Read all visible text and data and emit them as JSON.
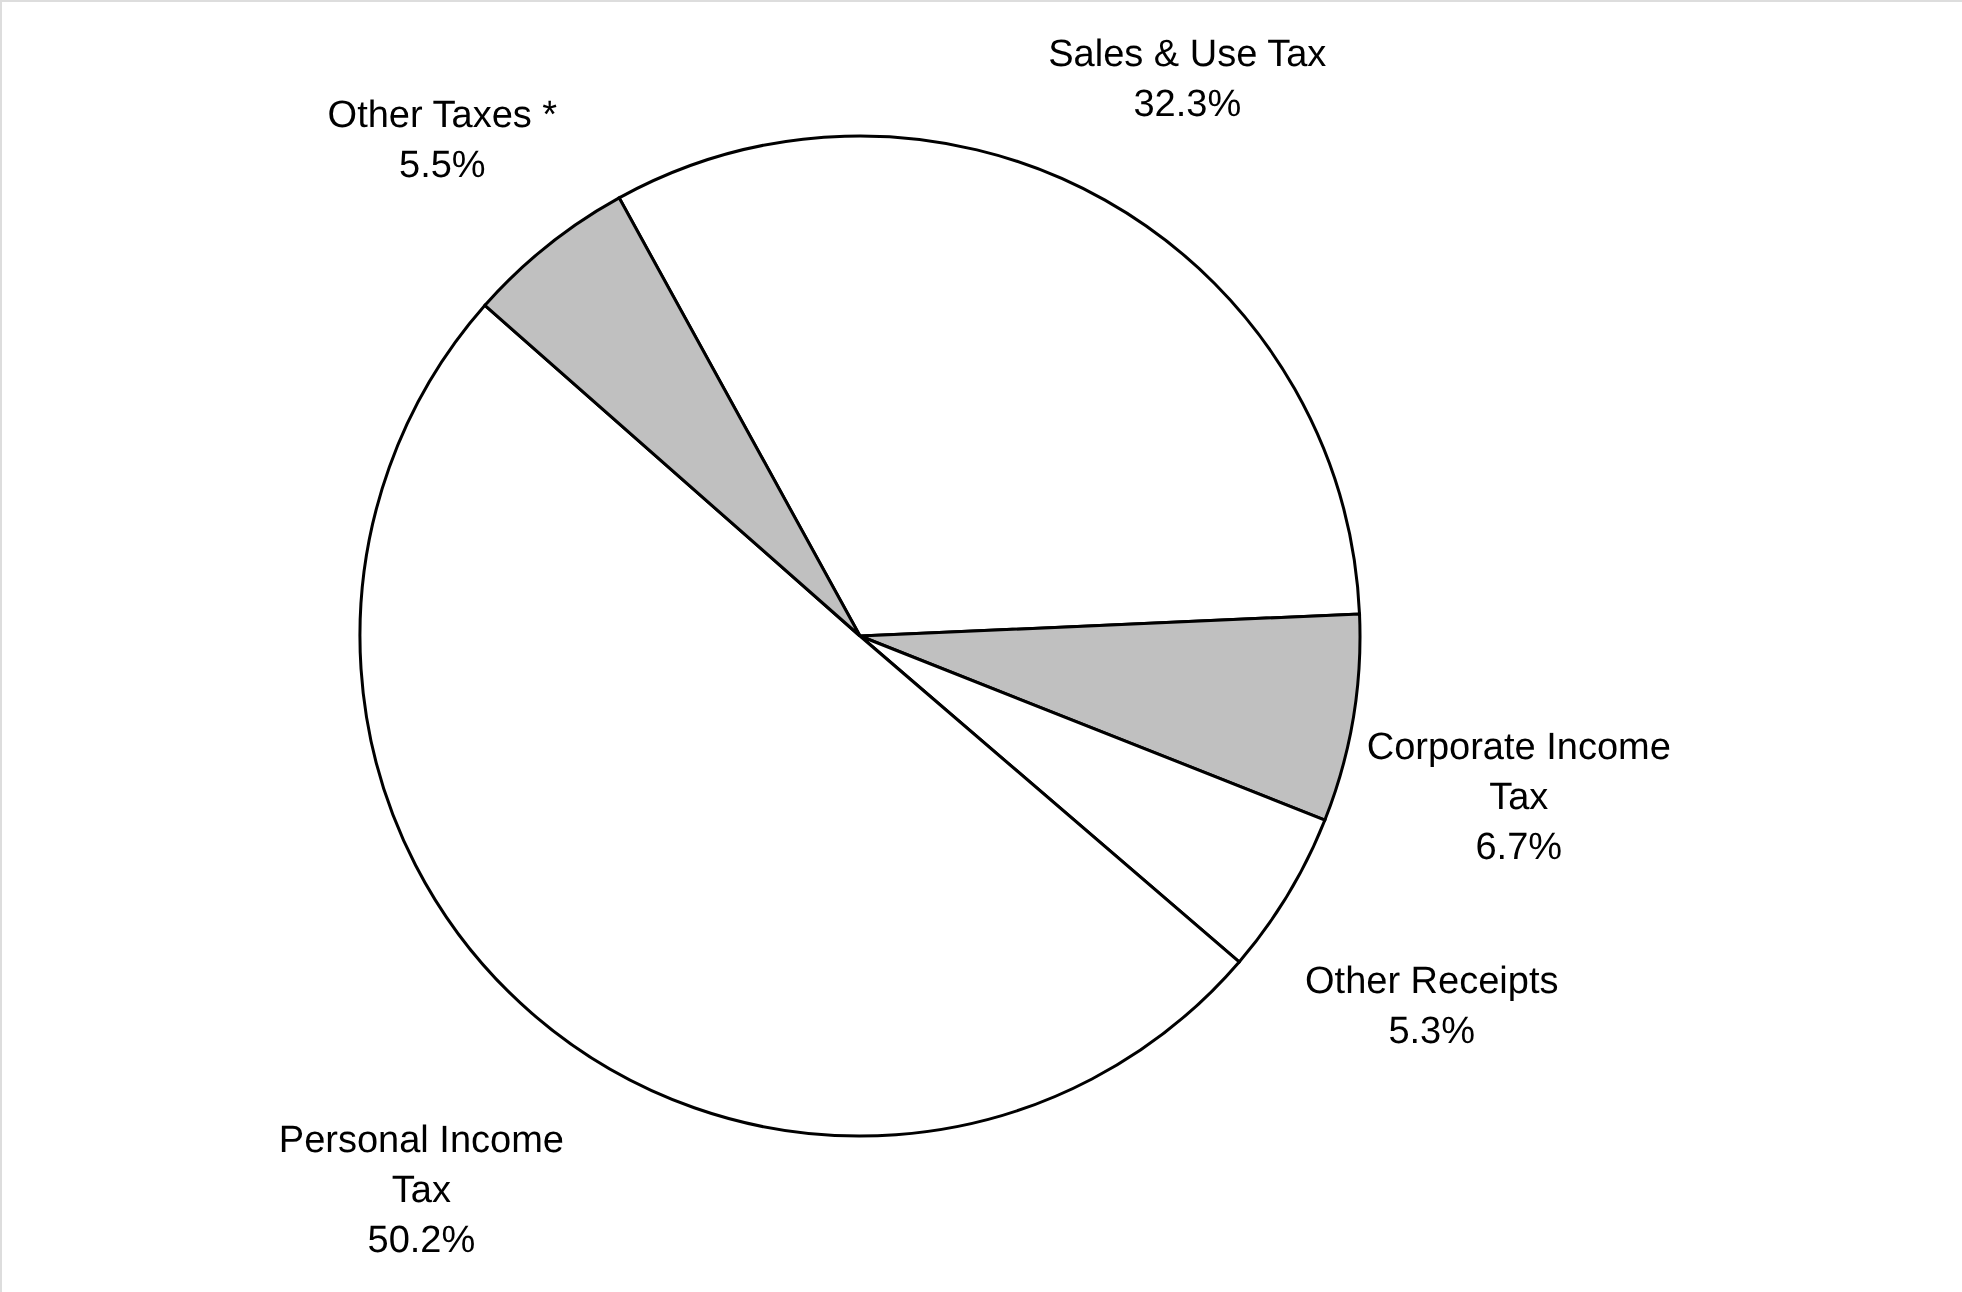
{
  "chart_data": {
    "type": "pie",
    "categories": [
      "Sales & Use Tax",
      "Corporate Income Tax",
      "Other Receipts",
      "Personal Income Tax",
      "Other Taxes *"
    ],
    "values": [
      32.3,
      6.7,
      5.3,
      50.2,
      5.5
    ],
    "value_labels": [
      "32.3%",
      "6.7%",
      "5.3%",
      "50.2%",
      "5.5%"
    ],
    "colors": [
      "#ffffff",
      "#c0c0c0",
      "#ffffff",
      "#ffffff",
      "#c0c0c0"
    ]
  }
}
